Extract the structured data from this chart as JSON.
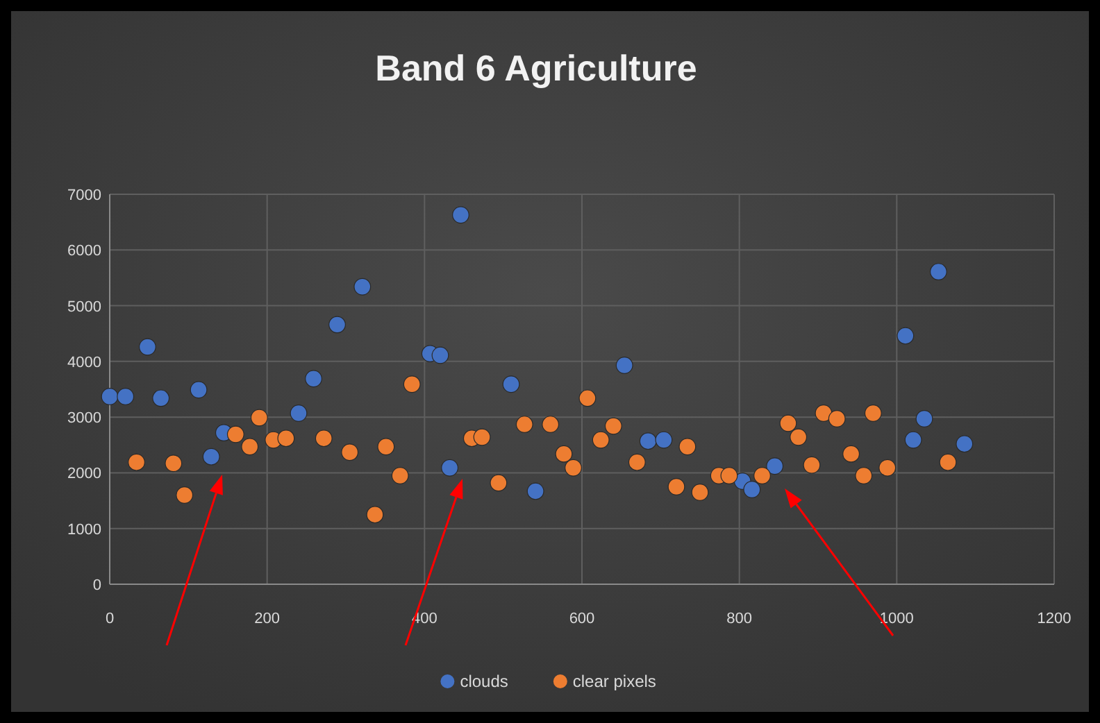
{
  "chart_data": {
    "type": "scatter",
    "title": "Band 6 Agriculture",
    "xlim": [
      0,
      1200
    ],
    "xticks": [
      0,
      200,
      400,
      600,
      800,
      1000,
      1200
    ],
    "ylim": [
      0,
      7000
    ],
    "yticks": [
      0,
      1000,
      2000,
      3000,
      4000,
      5000,
      6000,
      7000
    ],
    "grid": true,
    "legend": "bottom",
    "marker": "circle",
    "series": [
      {
        "name": "clouds",
        "color": "#4472c4",
        "x": [
          0,
          20,
          48,
          65,
          113,
          129,
          145,
          240,
          259,
          289,
          321,
          407,
          420,
          432,
          446,
          510,
          541,
          654,
          684,
          704,
          804,
          816,
          845,
          1011,
          1021,
          1035,
          1053,
          1086
        ],
        "values": [
          3370,
          3370,
          4260,
          3340,
          3490,
          2290,
          2720,
          3070,
          3690,
          4660,
          5340,
          4140,
          4110,
          2090,
          6630,
          3590,
          1670,
          3930,
          2570,
          2590,
          1850,
          1700,
          2120,
          4460,
          2590,
          2970,
          5610,
          2520
        ]
      },
      {
        "name": "clear pixels",
        "color": "#ed7d31",
        "x": [
          34,
          81,
          95,
          160,
          178,
          190,
          208,
          224,
          272,
          305,
          337,
          351,
          369,
          384,
          460,
          473,
          494,
          527,
          560,
          577,
          589,
          607,
          624,
          640,
          670,
          720,
          734,
          750,
          774,
          787,
          829,
          862,
          875,
          892,
          907,
          924,
          942,
          958,
          970,
          988,
          1065
        ],
        "values": [
          2190,
          2170,
          1600,
          2690,
          2470,
          2990,
          2590,
          2620,
          2620,
          2370,
          1250,
          2470,
          1950,
          3590,
          2620,
          2640,
          1820,
          2870,
          2870,
          2340,
          2090,
          3340,
          2590,
          2840,
          2190,
          1750,
          2470,
          1650,
          1950,
          1950,
          1950,
          2890,
          2640,
          2140,
          3070,
          2970,
          2340,
          1950,
          3070,
          2090,
          2190
        ]
      }
    ]
  }
}
